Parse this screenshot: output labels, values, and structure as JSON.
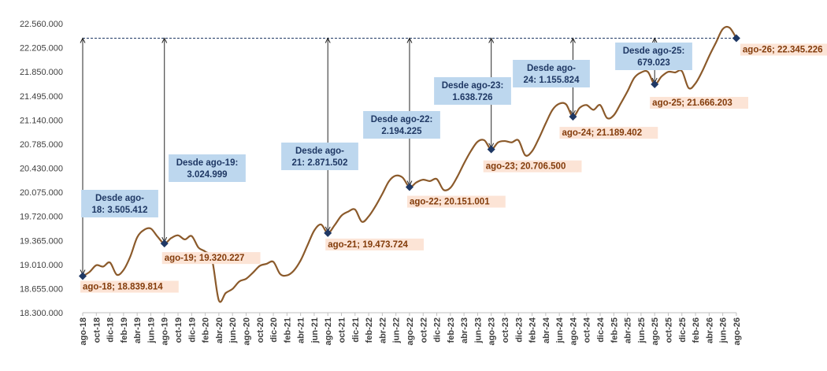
{
  "chart_data": {
    "type": "line",
    "title": "",
    "xlabel": "",
    "ylabel": "",
    "ylim": [
      18300000,
      22560000
    ],
    "yticks": [
      "22.560.000",
      "22.205.000",
      "21.850.000",
      "21.495.000",
      "21.140.000",
      "20.785.000",
      "20.430.000",
      "20.075.000",
      "19.720.000",
      "19.365.000",
      "19.010.000",
      "18.655.000",
      "18.300.000"
    ],
    "x_labels": [
      "ago-18",
      "oct-18",
      "dic-18",
      "feb-19",
      "abr-19",
      "jun-19",
      "ago-19",
      "oct-19",
      "dic-19",
      "feb-20",
      "abr-20",
      "jun-20",
      "ago-20",
      "oct-20",
      "dic-20",
      "feb-21",
      "abr-21",
      "jun-21",
      "ago-21",
      "oct-21",
      "dic-21",
      "feb-22",
      "abr-22",
      "jun-22",
      "ago-22",
      "oct-22",
      "dic-22",
      "feb-23",
      "abr-23",
      "jun-23",
      "ago-23",
      "oct-23",
      "dic-23",
      "feb-24",
      "abr-24",
      "jun-24",
      "ago-24",
      "oct-24",
      "dic-24",
      "feb-25",
      "abr-25",
      "jun-25",
      "ago-25",
      "oct-25",
      "dic-25",
      "feb-26",
      "abr-26",
      "jun-26",
      "ago-26"
    ],
    "series": [
      {
        "color": "#8B5A2B",
        "values": [
          18839814,
          18900000,
          19000000,
          18980000,
          19040000,
          18860000,
          18930000,
          19130000,
          19410000,
          19520000,
          19540000,
          19420000,
          19320227,
          19400000,
          19440000,
          19380000,
          19430000,
          19260000,
          19200000,
          19080000,
          18480000,
          18590000,
          18650000,
          18760000,
          18800000,
          18890000,
          18990000,
          19020000,
          19050000,
          18870000,
          18850000,
          18920000,
          19070000,
          19290000,
          19510000,
          19600000,
          19473724,
          19590000,
          19730000,
          19790000,
          19820000,
          19640000,
          19720000,
          19870000,
          20050000,
          20240000,
          20320000,
          20290000,
          20151001,
          20220000,
          20260000,
          20240000,
          20270000,
          20110000,
          20140000,
          20300000,
          20500000,
          20680000,
          20820000,
          20840000,
          20706500,
          20810000,
          20830000,
          20810000,
          20840000,
          20620000,
          20680000,
          20870000,
          21090000,
          21290000,
          21380000,
          21370000,
          21189402,
          21320000,
          21360000,
          21290000,
          21360000,
          21170000,
          21210000,
          21380000,
          21560000,
          21760000,
          21840000,
          21850000,
          21666203,
          21780000,
          21850000,
          21840000,
          21860000,
          21610000,
          21680000,
          21860000,
          22080000,
          22280000,
          22480000,
          22500000,
          22345226
        ]
      }
    ],
    "points": [
      {
        "label": "ago-18; 18.839.814",
        "value": 18839814,
        "index": 0
      },
      {
        "label": "ago-19; 19.320.227",
        "value": 19320227,
        "index": 12
      },
      {
        "label": "ago-21; 19.473.724",
        "value": 19473724,
        "index": 36
      },
      {
        "label": "ago-22; 20.151.001",
        "value": 20151001,
        "index": 48
      },
      {
        "label": "ago-23; 20.706.500",
        "value": 20706500,
        "index": 60
      },
      {
        "label": "ago-24; 21.189.402",
        "value": 21189402,
        "index": 72
      },
      {
        "label": "ago-25; 21.666.203",
        "value": 21666203,
        "index": 84
      },
      {
        "label": "ago-26; 22.345.226",
        "value": 22345226,
        "index": 96
      }
    ],
    "annotations": [
      {
        "line1": "Desde ago-",
        "line2": "18: 3.505.412",
        "index": 0
      },
      {
        "line1": "Desde ago-19:",
        "line2": "3.024.999",
        "index": 12
      },
      {
        "line1": "Desde ago-",
        "line2": "21: 2.871.502",
        "index": 36
      },
      {
        "line1": "Desde ago-22:",
        "line2": "2.194.225",
        "index": 48
      },
      {
        "line1": "Desde ago-23:",
        "line2": "1.638.726",
        "index": 60
      },
      {
        "line1": "Desde ago-",
        "line2": "24: 1.155.824",
        "index": 72
      },
      {
        "line1": "Desde ago-25:",
        "line2": "679.023",
        "index": 84
      }
    ],
    "reference_value": 22345226,
    "colors": {
      "line": "#8B5A2B",
      "marker": "#1F3864",
      "annotation_box": "#BDD7EE",
      "point_label_box": "#FCE4D6",
      "point_label_text": "#833C0B",
      "annotation_text": "#1F3864",
      "reference_line": "#1F3864",
      "axis_text": "#404040"
    }
  }
}
